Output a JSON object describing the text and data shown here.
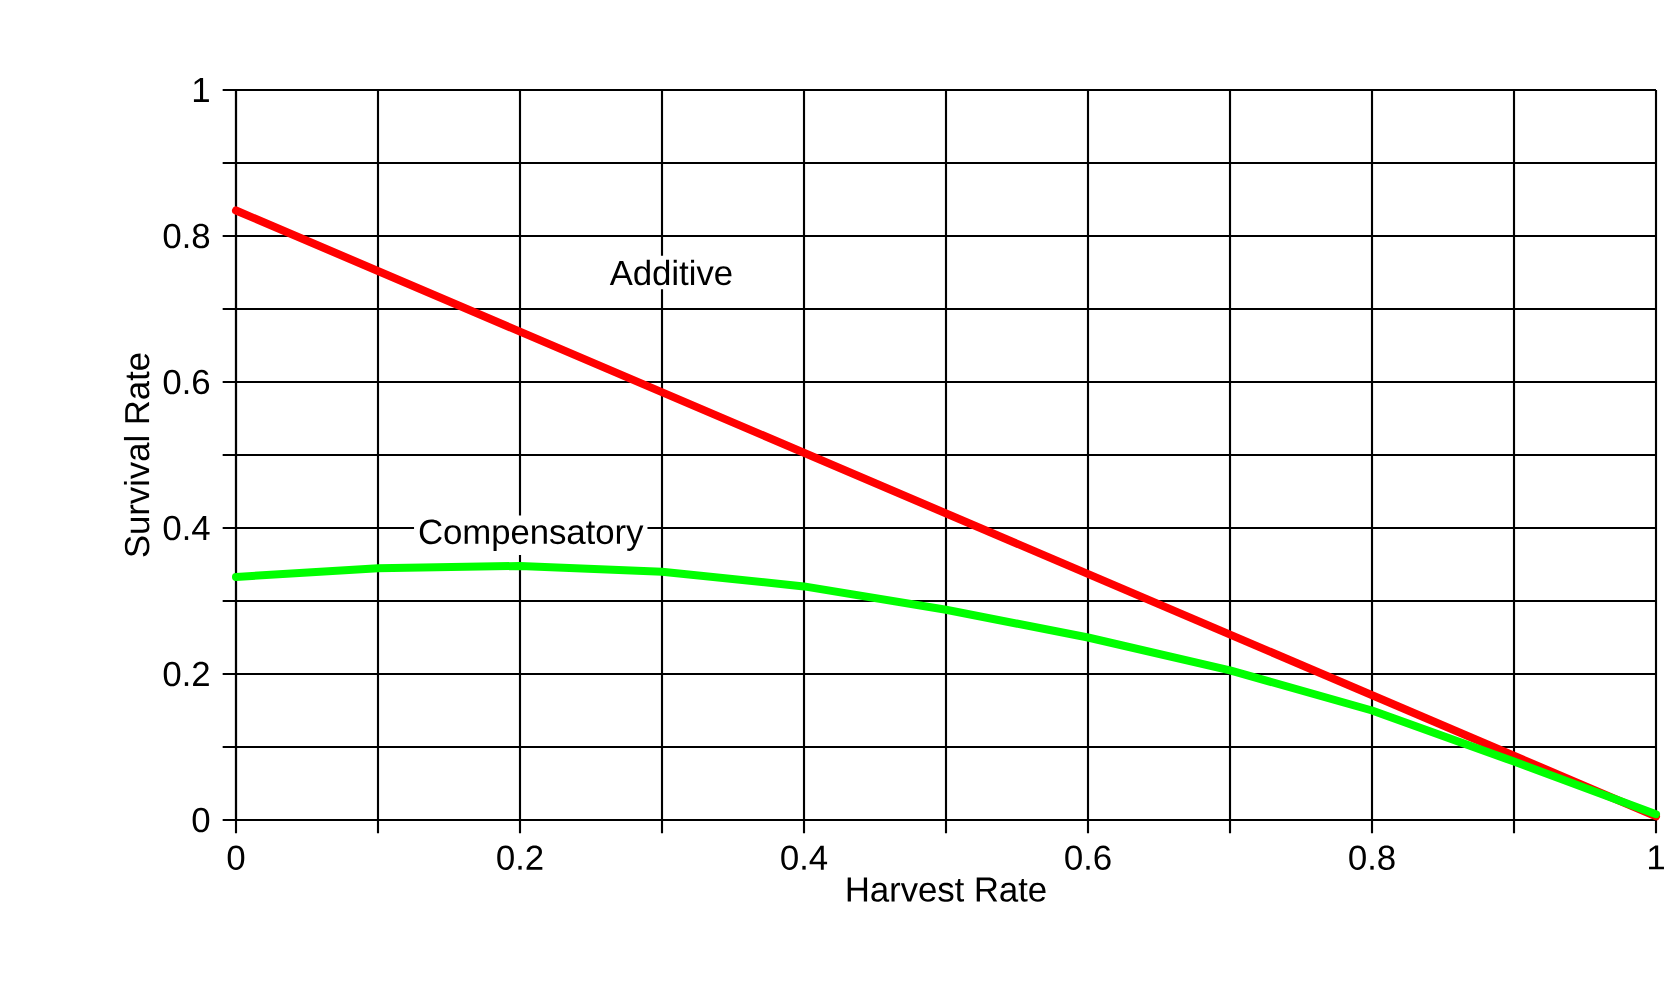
{
  "chart_data": {
    "type": "line",
    "xlabel": "Harvest Rate",
    "ylabel": "Survival Rate",
    "x": [
      0,
      0.1,
      0.2,
      0.3,
      0.4,
      0.5,
      0.6,
      0.7,
      0.8,
      0.9,
      1
    ],
    "series": [
      {
        "name": "Additive",
        "color": "#ff0000",
        "x": [
          0,
          0.5,
          1
        ],
        "values": [
          0.835,
          0.42,
          0.005
        ]
      },
      {
        "name": "Compensatory",
        "color": "#00ff00",
        "values": [
          0.333,
          0.345,
          0.348,
          0.34,
          0.32,
          0.288,
          0.25,
          0.205,
          0.15,
          0.08,
          0.008
        ]
      }
    ],
    "xlim": [
      0,
      1
    ],
    "ylim": [
      0,
      1
    ],
    "xticks": [
      0,
      {
        "value": 0.1,
        "label": null
      },
      0.2,
      {
        "value": 0.3,
        "label": null
      },
      0.4,
      {
        "value": 0.5,
        "label": null
      },
      0.6,
      {
        "value": 0.7,
        "label": null
      },
      0.8,
      {
        "value": 0.9,
        "label": null
      },
      1
    ],
    "yticks": [
      0,
      {
        "value": 0.1,
        "label": null
      },
      0.2,
      {
        "value": 0.3,
        "label": null
      },
      0.4,
      {
        "value": 0.5,
        "label": null
      },
      0.6,
      {
        "value": 0.7,
        "label": null
      },
      0.8,
      {
        "value": 0.9,
        "label": null
      },
      1
    ],
    "grid": true,
    "legend": false,
    "marker": "none",
    "line_style": "solid"
  }
}
